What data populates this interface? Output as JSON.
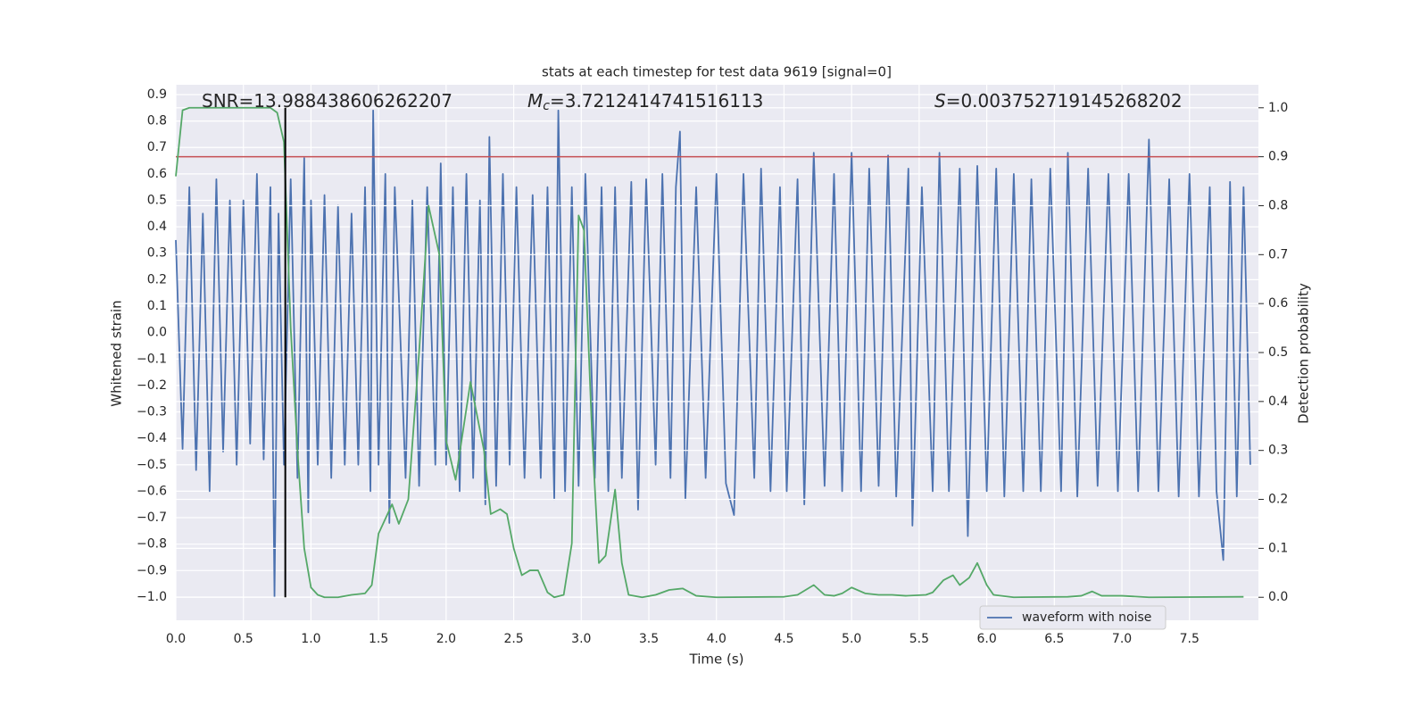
{
  "chart_data": {
    "type": "line",
    "title": "stats at each timestep for test data 9619 [signal=0]",
    "xlabel": "Time (s)",
    "ylabel": "Whitened strain",
    "y2label": "Detection probability",
    "xlim": [
      0,
      8.01
    ],
    "ylim": [
      -1.088,
      0.937
    ],
    "y2lim": [
      -0.047,
      1.047
    ],
    "xticks": [
      {
        "value": 0,
        "label": "0.0"
      },
      0.5,
      {
        "value": 1,
        "label": "1.0"
      },
      1.5,
      {
        "value": 2,
        "label": "2.0"
      },
      2.5,
      {
        "value": 3,
        "label": "3.0"
      },
      3.5,
      {
        "value": 4,
        "label": "4.0"
      },
      4.5,
      {
        "value": 5,
        "label": "5.0"
      },
      5.5,
      {
        "value": 6,
        "label": "6.0"
      },
      6.5,
      {
        "value": 7,
        "label": "7.0"
      },
      7.5
    ],
    "yticks": [
      {
        "value": -1,
        "label": "−1.0"
      },
      {
        "value": -0.9,
        "label": "−0.9"
      },
      {
        "value": -0.8,
        "label": "−0.8"
      },
      {
        "value": -0.7,
        "label": "−0.7"
      },
      {
        "value": -0.6,
        "label": "−0.6"
      },
      {
        "value": -0.5,
        "label": "−0.5"
      },
      {
        "value": -0.4,
        "label": "−0.4"
      },
      {
        "value": -0.3,
        "label": "−0.3"
      },
      {
        "value": -0.2,
        "label": "−0.2"
      },
      {
        "value": -0.1,
        "label": "−0.1"
      },
      {
        "value": 0,
        "label": "0.0"
      },
      0.1,
      0.2,
      0.3,
      0.4,
      0.5,
      0.6,
      0.7,
      0.8,
      0.9
    ],
    "y2ticks": [
      {
        "value": 0,
        "label": "0.0"
      },
      0.1,
      0.2,
      0.3,
      0.4,
      0.5,
      0.6,
      0.7,
      0.8,
      0.9,
      {
        "value": 1,
        "label": "1.0"
      }
    ],
    "grid": true,
    "legend": "lower right",
    "series": [
      {
        "name": "waveform with noise",
        "color": "#4c72b0",
        "x": [
          0,
          0.05,
          0.1,
          0.15,
          0.2,
          0.25,
          0.3,
          0.35,
          0.4,
          0.45,
          0.5,
          0.55,
          0.6,
          0.65,
          0.7,
          0.73,
          0.76,
          0.8,
          0.85,
          0.9,
          0.95,
          0.98,
          1.0,
          1.05,
          1.1,
          1.15,
          1.2,
          1.25,
          1.3,
          1.35,
          1.4,
          1.44,
          1.46,
          1.5,
          1.55,
          1.58,
          1.62,
          1.7,
          1.75,
          1.8,
          1.86,
          1.92,
          1.96,
          2.0,
          2.05,
          2.1,
          2.15,
          2.2,
          2.25,
          2.29,
          2.32,
          2.37,
          2.42,
          2.47,
          2.52,
          2.58,
          2.64,
          2.7,
          2.75,
          2.8,
          2.83,
          2.88,
          2.93,
          2.98,
          3.03,
          3.1,
          3.15,
          3.2,
          3.25,
          3.3,
          3.37,
          3.42,
          3.48,
          3.55,
          3.6,
          3.66,
          3.7,
          3.73,
          3.77,
          3.85,
          3.92,
          4.0,
          4.07,
          4.13,
          4.2,
          4.28,
          4.33,
          4.4,
          4.47,
          4.52,
          4.6,
          4.65,
          4.72,
          4.8,
          4.87,
          4.93,
          5.0,
          5.07,
          5.13,
          5.2,
          5.27,
          5.33,
          5.42,
          5.45,
          5.52,
          5.6,
          5.65,
          5.72,
          5.8,
          5.86,
          5.93,
          6.0,
          6.07,
          6.13,
          6.2,
          6.27,
          6.33,
          6.4,
          6.47,
          6.55,
          6.6,
          6.67,
          6.75,
          6.82,
          6.9,
          6.97,
          7.05,
          7.12,
          7.2,
          7.27,
          7.35,
          7.42,
          7.5,
          7.57,
          7.65,
          7.7,
          7.75,
          7.8,
          7.85,
          7.9,
          7.95
        ],
        "values": [
          0.35,
          -0.44,
          0.55,
          -0.52,
          0.45,
          -0.6,
          0.58,
          -0.45,
          0.5,
          -0.5,
          0.5,
          -0.42,
          0.6,
          -0.48,
          0.55,
          -1.0,
          0.45,
          -0.5,
          0.58,
          -0.55,
          0.66,
          -0.68,
          0.5,
          -0.5,
          0.52,
          -0.55,
          0.48,
          -0.5,
          0.45,
          -0.5,
          0.55,
          -0.6,
          0.84,
          -0.5,
          0.6,
          -0.72,
          0.55,
          -0.55,
          0.5,
          -0.58,
          0.55,
          -0.5,
          0.64,
          -0.5,
          0.55,
          -0.6,
          0.6,
          -0.55,
          0.5,
          -0.65,
          0.74,
          -0.58,
          0.6,
          -0.5,
          0.55,
          -0.55,
          0.52,
          -0.55,
          0.55,
          -0.63,
          0.84,
          -0.6,
          0.55,
          -0.58,
          0.6,
          -0.55,
          0.55,
          -0.6,
          0.55,
          -0.55,
          0.57,
          -0.67,
          0.58,
          -0.5,
          0.6,
          -0.55,
          0.55,
          0.76,
          -0.63,
          0.55,
          -0.55,
          0.6,
          -0.57,
          -0.69,
          0.6,
          -0.55,
          0.62,
          -0.6,
          0.55,
          -0.6,
          0.58,
          -0.65,
          0.68,
          -0.58,
          0.6,
          -0.6,
          0.68,
          -0.6,
          0.62,
          -0.58,
          0.67,
          -0.62,
          0.62,
          -0.73,
          0.55,
          -0.6,
          0.68,
          -0.6,
          0.62,
          -0.77,
          0.63,
          -0.6,
          0.62,
          -0.62,
          0.6,
          -0.6,
          0.58,
          -0.6,
          0.62,
          -0.6,
          0.68,
          -0.62,
          0.62,
          -0.58,
          0.6,
          -0.6,
          0.6,
          -0.6,
          0.73,
          -0.6,
          0.58,
          -0.62,
          0.6,
          -0.62,
          0.55,
          -0.6,
          -0.86,
          0.57,
          -0.62,
          0.55,
          -0.5
        ]
      },
      {
        "color": "#55a868",
        "axis": "y2",
        "x": [
          0,
          0.05,
          0.1,
          0.2,
          0.3,
          0.4,
          0.5,
          0.6,
          0.7,
          0.75,
          0.8,
          0.85,
          0.9,
          0.95,
          1.0,
          1.05,
          1.1,
          1.2,
          1.3,
          1.4,
          1.45,
          1.5,
          1.6,
          1.65,
          1.72,
          1.8,
          1.87,
          1.95,
          2.0,
          2.07,
          2.18,
          2.28,
          2.33,
          2.4,
          2.45,
          2.5,
          2.56,
          2.62,
          2.68,
          2.75,
          2.8,
          2.87,
          2.93,
          2.98,
          3.02,
          3.08,
          3.13,
          3.18,
          3.25,
          3.3,
          3.35,
          3.45,
          3.55,
          3.65,
          3.75,
          3.85,
          4.0,
          4.5,
          4.6,
          4.72,
          4.8,
          4.87,
          4.93,
          5.0,
          5.1,
          5.2,
          5.3,
          5.4,
          5.55,
          5.6,
          5.68,
          5.75,
          5.8,
          5.87,
          5.93,
          6.0,
          6.05,
          6.2,
          6.6,
          6.7,
          6.78,
          6.85,
          7.0,
          7.2,
          7.9
        ],
        "values": [
          0.86,
          0.995,
          1,
          1,
          1,
          1,
          1,
          1,
          1,
          0.99,
          0.93,
          0.55,
          0.3,
          0.1,
          0.02,
          0.005,
          0,
          0,
          0.005,
          0.008,
          0.025,
          0.13,
          0.19,
          0.15,
          0.2,
          0.5,
          0.8,
          0.7,
          0.32,
          0.24,
          0.44,
          0.3,
          0.17,
          0.18,
          0.17,
          0.1,
          0.045,
          0.055,
          0.055,
          0.01,
          0,
          0.005,
          0.11,
          0.78,
          0.75,
          0.33,
          0.07,
          0.085,
          0.22,
          0.07,
          0.005,
          0,
          0.005,
          0.015,
          0.018,
          0.003,
          0,
          0.001,
          0.005,
          0.025,
          0.005,
          0.003,
          0.008,
          0.02,
          0.008,
          0.005,
          0.005,
          0.003,
          0.005,
          0.01,
          0.035,
          0.045,
          0.025,
          0.04,
          0.07,
          0.025,
          0.005,
          0,
          0.001,
          0.003,
          0.012,
          0.003,
          0.003,
          0,
          0.001
        ]
      }
    ],
    "hlines": [
      {
        "value": 0.9,
        "axis": "y2",
        "color": "#c44e52"
      }
    ],
    "vlines": [
      {
        "value": 0.81,
        "color": "#000000"
      }
    ],
    "annotations": [
      {
        "text": "SNR=13.988438606262207"
      },
      {
        "symbol": "M",
        "subscript": "c",
        "text": "=3.7212414741516113"
      },
      {
        "symbol": "S",
        "text": "=0.003752719145268202"
      }
    ]
  }
}
